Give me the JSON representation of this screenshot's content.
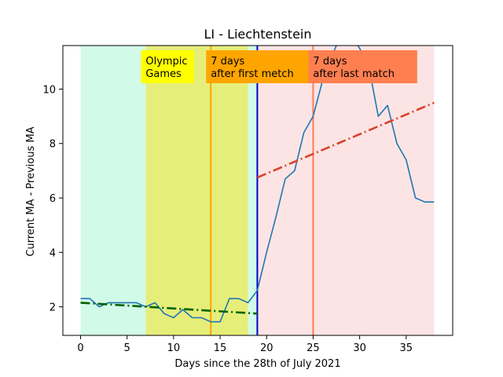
{
  "chart_data": {
    "type": "line",
    "title": "LI - Liechtenstein",
    "xlabel": "Days since the 28th of July 2021",
    "ylabel": "Current MA - Previous MA",
    "xlim": [
      -1.9,
      40
    ],
    "ylim": [
      0.95,
      11.6
    ],
    "xticks": [
      0,
      5,
      10,
      15,
      20,
      25,
      30,
      35
    ],
    "yticks": [
      2,
      4,
      6,
      8,
      10
    ],
    "grid": false,
    "series": [
      {
        "color": "#1f77b4",
        "style": "solid",
        "x": [
          0,
          1,
          2,
          3,
          4,
          5,
          6,
          7,
          8,
          9,
          10,
          11,
          12,
          13,
          14,
          15,
          16,
          17,
          18,
          19,
          20,
          21,
          22,
          23,
          24,
          25,
          26,
          27,
          28,
          29,
          30,
          31,
          32,
          33,
          34,
          35,
          36,
          37,
          38
        ],
        "values": [
          2.3,
          2.3,
          2.0,
          2.15,
          2.15,
          2.15,
          2.15,
          2.0,
          2.15,
          1.75,
          1.6,
          1.9,
          1.6,
          1.6,
          1.45,
          1.45,
          2.3,
          2.3,
          2.15,
          2.6,
          4.0,
          5.3,
          6.7,
          7.0,
          8.4,
          9.0,
          10.3,
          11.2,
          12.0,
          12.0,
          11.5,
          10.8,
          9.0,
          9.4,
          8.0,
          7.4,
          6.0,
          5.85,
          5.85
        ]
      },
      {
        "color": "#006400",
        "style": "dashdot",
        "x": [
          0,
          19
        ],
        "values": [
          2.15,
          1.75
        ]
      },
      {
        "color": "#d9432b",
        "style": "dashdot",
        "x": [
          19,
          38
        ],
        "values": [
          6.75,
          9.5
        ]
      }
    ],
    "regions": [
      {
        "x0": 0,
        "x1": 7,
        "color": "#d2fae8"
      },
      {
        "x0": 7,
        "x1": 18,
        "color": "#e6ee7a"
      },
      {
        "x0": 18,
        "x1": 19,
        "color": "#d2fae8"
      },
      {
        "x0": 19,
        "x1": 38,
        "color": "#fde4e4"
      }
    ],
    "vlines": [
      {
        "x": 14,
        "color": "#ffa500"
      },
      {
        "x": 19,
        "color": "#0000cd"
      },
      {
        "x": 25,
        "color": "#ff7f50"
      }
    ],
    "annotations": [
      {
        "lines": [
          "Olympic",
          "Games"
        ],
        "bg": "#ffff00",
        "x": 7
      },
      {
        "lines": [
          "7 days",
          "after first metch"
        ],
        "bg": "#ffa500",
        "x": 14
      },
      {
        "lines": [
          "7 days",
          "after last match"
        ],
        "bg": "#ff7f50",
        "x": 25
      }
    ]
  }
}
